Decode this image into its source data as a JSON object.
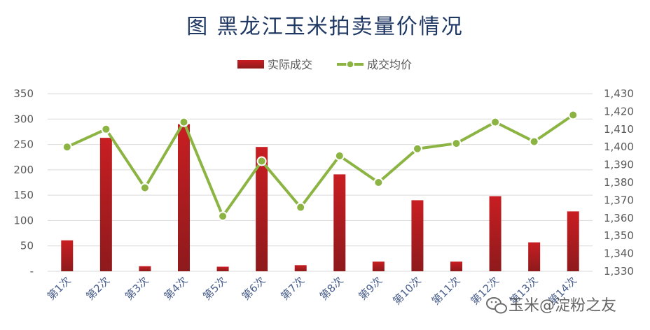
{
  "chart_data": {
    "type": "bar",
    "title": "图 黑龙江玉米拍卖量价情况",
    "categories": [
      "第1次",
      "第2次",
      "第3次",
      "第4次",
      "第5次",
      "第6次",
      "第7次",
      "第8次",
      "第9次",
      "第10次",
      "第11次",
      "第12次",
      "第13次",
      "第14次"
    ],
    "series": [
      {
        "name": "实际成交",
        "type": "bar",
        "axis": "left",
        "values": [
          61,
          263,
          10,
          290,
          9,
          245,
          12,
          191,
          19,
          140,
          19,
          148,
          57,
          118
        ]
      },
      {
        "name": "成交均价",
        "type": "line",
        "axis": "right",
        "values": [
          1400,
          1410,
          1377,
          1414,
          1361,
          1392,
          1366,
          1395,
          1380,
          1399,
          1402,
          1414,
          1403,
          1418
        ]
      }
    ],
    "ylim_left": [
      0,
      350
    ],
    "yticks_left": [
      "-",
      "50",
      "100",
      "150",
      "200",
      "250",
      "300",
      "350"
    ],
    "ylim_right": [
      1330,
      1430
    ],
    "yticks_right": [
      "1,330",
      "1,340",
      "1,350",
      "1,360",
      "1,370",
      "1,380",
      "1,390",
      "1,400",
      "1,410",
      "1,420",
      "1,430"
    ],
    "legend_position": "top-center",
    "grid": true,
    "colors": {
      "bar": "#c0282a",
      "line": "#8cb443",
      "title": "#1f3864",
      "grid": "#d9d9d9"
    }
  },
  "watermark": {
    "text": "玉米@淀粉之友",
    "icon": "wechat-icon"
  }
}
